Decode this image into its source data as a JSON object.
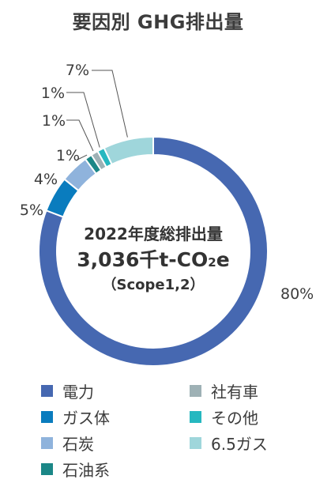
{
  "chart_data": {
    "type": "pie",
    "title": "要因別 GHG排出量",
    "center": {
      "line1": "2022年度総排出量",
      "line2_main": "3,036千t-CO",
      "line2_sub": "2",
      "line2_tail": "e",
      "line3": "（Scope1,2）"
    },
    "slices": [
      {
        "label": "電力",
        "value": 80,
        "value_label": "80%",
        "color": "#4668b1"
      },
      {
        "label": "ガス体",
        "value": 5,
        "value_label": "5%",
        "color": "#0a7cbe"
      },
      {
        "label": "石炭",
        "value": 4,
        "value_label": "4%",
        "color": "#8fb3dc"
      },
      {
        "label": "石油系",
        "value": 1,
        "value_label": "1%",
        "color": "#1b8787"
      },
      {
        "label": "社有車",
        "value": 1,
        "value_label": "1%",
        "color": "#9eb1b5"
      },
      {
        "label": "その他",
        "value": 1,
        "value_label": "1%",
        "color": "#26b8c0"
      },
      {
        "label": "6.5ガス",
        "value": 7,
        "value_label": "7%",
        "color": "#9fd6db"
      }
    ],
    "legend_placement": "bottom"
  }
}
